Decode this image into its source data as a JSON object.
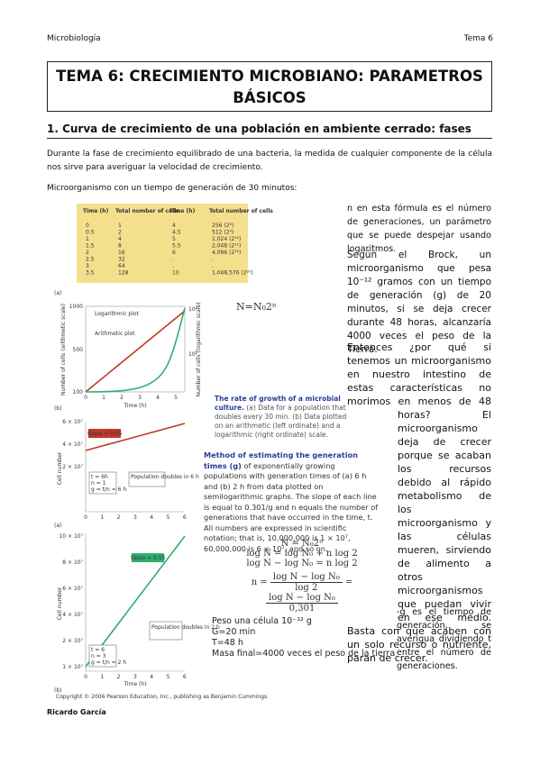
{
  "header": {
    "left": "Microbiología",
    "right": "Tema 6"
  },
  "title": "TEMA 6: CRECIMIENTO MICROBIANO: PARAMETROS BÁSICOS",
  "section": "1. Curva de crecimiento de una población en ambiente cerrado: fases",
  "intro": "Durante la fase de crecimiento equilibrado de una bacteria, la medida de cualquier componente de la célula nos sirve para averiguar la velocidad de crecimiento.",
  "intro2": "Microorganismo con un tiempo de generación de 30 minutos:",
  "table": {
    "headers": [
      "Time (h)",
      "Total number of cells",
      "Time (h)",
      "Total number of cells"
    ],
    "rows": [
      [
        "0",
        "1",
        "4",
        "256 (2⁸)"
      ],
      [
        "0.5",
        "2",
        "4.5",
        "512 (2⁹)"
      ],
      [
        "1",
        "4",
        "5",
        "1,024 (2¹⁰)"
      ],
      [
        "1.5",
        "8",
        "5.5",
        "2,048 (2¹¹)"
      ],
      [
        "2",
        "16",
        "6",
        "4,096 (2¹²)"
      ],
      [
        "2.5",
        "32",
        ".",
        "."
      ],
      [
        "3",
        "64",
        ".",
        "."
      ],
      [
        "3.5",
        "128",
        "10",
        "1,048,576 (2²⁰)"
      ]
    ]
  },
  "graph_a": {
    "panel": "(a)",
    "left_ticks": [
      "1000",
      "500",
      "100"
    ],
    "right_ticks": [
      "10³",
      "10²"
    ],
    "x_ticks": [
      "0",
      "1",
      "2",
      "3",
      "4",
      "5"
    ],
    "x_label": "Time (h)",
    "y_label": "Number of cells (arithmetic scale)",
    "y2_label": "Number of cells (logarithmic scale)",
    "log_label": "Logarithmic plot",
    "arith_label": "Arithmetic plot"
  },
  "formula_top": "N=N₀2ⁿ",
  "caption": {
    "title": "The rate of growth of a microbial culture.",
    "text": "(a) Data for a population that doubles every 30 min. (b) Data plotted on an arithmetic (left ordinate) and a logarithmic (right ordinate) scale.",
    "panel": "(b)"
  },
  "graph_b": {
    "left_ticks": [
      "6 × 10⁷",
      "4 × 10⁷",
      "2 × 10⁷"
    ],
    "x_ticks": [
      "0",
      "1",
      "2",
      "3",
      "4",
      "5",
      "6"
    ],
    "slope": "Slope = 0.05",
    "calc": [
      "t = 6h",
      "n = 1",
      "g = t/n = 6 h"
    ],
    "note": "Population doubles in 6 h",
    "y_label": "Cell number",
    "panel": "(a)"
  },
  "graph_c": {
    "left_ticks": [
      "10 × 10⁷",
      "8 × 10⁷",
      "6 × 10⁷",
      "4 × 10⁷",
      "2 × 10⁷",
      "1 × 10⁷"
    ],
    "x_ticks": [
      "0",
      "1",
      "2",
      "3",
      "4",
      "5",
      "6"
    ],
    "slope": "Slope = 0.15",
    "calc": [
      "t = 6",
      "n = 3",
      "g = t/n = 2 h"
    ],
    "note": "Population doubles in 2 h",
    "x_label": "Time (h)",
    "y_label": "Cell number",
    "panel": "(b)",
    "copyright": "Copyright © 2006 Pearson Education, Inc., publishing as Benjamin Cummings."
  },
  "method": {
    "title": "Method of estimating the generation times (g)",
    "text": "of exponentially growing populations with generation times of (a) 6 h and (b) 2 h from data plotted on semilogarithmic graphs. The slope of each line is equal to 0.301/g and n equals the number of generations that have occurred in the time, t. All numbers are expressed in scientific notation; that is, 10,000,000 is 1 × 10⁷, 60,000,000 is 6 × 10⁷, and so on."
  },
  "formulas": {
    "f1": "N = N₀2ⁿ",
    "f2": "log N = log N₀ + n log 2",
    "f3": "log N − log N₀ = n log 2",
    "lhs": "n =",
    "num1": "log N − log N₀",
    "den1": "log 2",
    "eq": "=",
    "num2": "log N − log N₀",
    "den2": "0,301"
  },
  "peso": [
    "Peso una célula   10⁻¹² g",
    "G=20 min",
    "T=48 h",
    "Masa final=4000 veces el peso de la tierra"
  ],
  "right": {
    "p1": "n en esta fórmula es el número de generaciones, un parámetro que se puede despejar usando logaritmos.",
    "p2": "Según el Brock, un microorganismo que pesa 10⁻¹² gramos con un tiempo de generación (g) de 20 minutos, si se deja crecer durante 48 horas, alcanzaría 4000 veces el peso de la Tierra.",
    "p3": "Entonces ¿por qué si tenemos un microorganismo en nuestro intestino de estas características no morimos en menos de 48 horas? El microorganismo deja de crecer porque se acaban los recursos debido al rápido metabolismo de los microorganismo y las células mueren, sirviendo de alimento a otros microorganismos que puedan vivir en ese medio. Basta con que acaben con un solo recurso o nutriente, paran de crecer.",
    "p4": "-g es el tiempo de generación, se averigua dividiendo t entre el número de generaciones."
  },
  "footer": "Ricardo García"
}
